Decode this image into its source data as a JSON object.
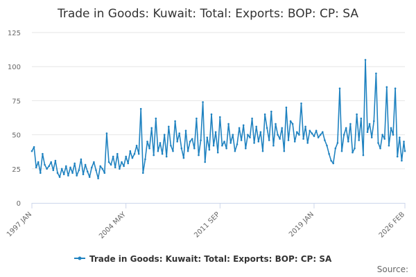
{
  "chart_data": {
    "type": "line",
    "title": "Trade in Goods: Kuwait: Total: Exports: BOP: CP: SA",
    "xlabel": "",
    "ylabel": "",
    "x_start": "1997-01",
    "x_end": "2026-02",
    "x_ticks": [
      "1997 JAN",
      "2004 MAY",
      "2011 SEP",
      "2019 JAN",
      "2026 FEB"
    ],
    "ylim": [
      0,
      125
    ],
    "y_ticks": [
      0,
      25,
      50,
      75,
      100,
      125
    ],
    "grid": true,
    "legend_position": "bottom",
    "credit": "Source:",
    "series": [
      {
        "name": "Trade in Goods: Kuwait: Total: Exports: BOP: CP: SA",
        "color": "#1f82c0",
        "x": [
          "1997-01",
          "1997-03",
          "1997-05",
          "1997-07",
          "1997-09",
          "1997-11",
          "1998-01",
          "1998-03",
          "1998-05",
          "1998-07",
          "1998-09",
          "1998-11",
          "1999-01",
          "1999-03",
          "1999-05",
          "1999-07",
          "1999-09",
          "1999-11",
          "2000-01",
          "2000-03",
          "2000-05",
          "2000-07",
          "2000-09",
          "2000-11",
          "2001-01",
          "2001-03",
          "2001-05",
          "2001-07",
          "2001-09",
          "2001-11",
          "2002-01",
          "2002-03",
          "2002-05",
          "2002-07",
          "2002-09",
          "2002-11",
          "2003-01",
          "2003-03",
          "2003-05",
          "2003-07",
          "2003-09",
          "2003-11",
          "2004-01",
          "2004-03",
          "2004-05",
          "2004-07",
          "2004-09",
          "2004-11",
          "2005-01",
          "2005-03",
          "2005-05",
          "2005-07",
          "2005-09",
          "2005-11",
          "2006-01",
          "2006-03",
          "2006-05",
          "2006-07",
          "2006-09",
          "2006-11",
          "2007-01",
          "2007-03",
          "2007-05",
          "2007-07",
          "2007-09",
          "2007-11",
          "2008-01",
          "2008-03",
          "2008-05",
          "2008-07",
          "2008-09",
          "2008-11",
          "2009-01",
          "2009-03",
          "2009-05",
          "2009-07",
          "2009-09",
          "2009-11",
          "2010-01",
          "2010-03",
          "2010-05",
          "2010-07",
          "2010-09",
          "2010-11",
          "2011-01",
          "2011-03",
          "2011-05",
          "2011-07",
          "2011-09",
          "2011-11",
          "2012-01",
          "2012-03",
          "2012-05",
          "2012-07",
          "2012-09",
          "2012-11",
          "2013-01",
          "2013-03",
          "2013-05",
          "2013-07",
          "2013-09",
          "2013-11",
          "2014-01",
          "2014-03",
          "2014-05",
          "2014-07",
          "2014-09",
          "2014-11",
          "2015-01",
          "2015-03",
          "2015-05",
          "2015-07",
          "2015-09",
          "2015-11",
          "2016-01",
          "2016-03",
          "2016-05",
          "2016-07",
          "2016-09",
          "2016-11",
          "2017-01",
          "2017-03",
          "2017-05",
          "2017-07",
          "2017-09",
          "2017-11",
          "2018-01",
          "2018-03",
          "2018-05",
          "2018-07",
          "2018-09",
          "2018-11",
          "2019-01",
          "2019-03",
          "2019-05",
          "2019-07",
          "2019-09",
          "2019-11",
          "2020-01",
          "2020-03",
          "2020-05",
          "2020-07",
          "2020-09",
          "2020-11",
          "2021-01",
          "2021-03",
          "2021-05",
          "2021-07",
          "2021-09",
          "2021-11",
          "2022-01",
          "2022-03",
          "2022-05",
          "2022-07",
          "2022-09",
          "2022-11",
          "2023-01",
          "2023-03",
          "2023-05",
          "2023-07",
          "2023-09",
          "2023-11",
          "2024-01",
          "2024-03",
          "2024-05",
          "2024-07",
          "2024-09",
          "2024-11",
          "2025-01",
          "2025-03",
          "2025-05",
          "2025-07",
          "2025-09",
          "2025-11",
          "2026-01",
          "2026-02"
        ],
        "values": [
          38,
          41,
          26,
          30,
          22,
          36,
          28,
          25,
          27,
          30,
          24,
          31,
          22,
          19,
          25,
          21,
          27,
          20,
          26,
          22,
          29,
          20,
          24,
          32,
          21,
          28,
          23,
          19,
          26,
          30,
          24,
          18,
          27,
          25,
          22,
          51,
          30,
          28,
          34,
          26,
          36,
          25,
          30,
          27,
          34,
          29,
          38,
          33,
          36,
          42,
          36,
          69,
          22,
          32,
          45,
          40,
          55,
          35,
          62,
          38,
          44,
          36,
          50,
          34,
          56,
          42,
          38,
          60,
          45,
          51,
          40,
          33,
          53,
          38,
          45,
          47,
          40,
          62,
          35,
          46,
          74,
          30,
          48,
          39,
          65,
          42,
          52,
          37,
          63,
          42,
          45,
          40,
          58,
          44,
          50,
          38,
          43,
          55,
          46,
          57,
          40,
          50,
          48,
          62,
          44,
          56,
          45,
          52,
          38,
          65,
          55,
          46,
          67,
          42,
          58,
          50,
          47,
          55,
          38,
          70,
          46,
          60,
          58,
          45,
          52,
          50,
          73,
          47,
          56,
          44,
          53,
          51,
          49,
          53,
          48,
          50,
          52,
          46,
          42,
          36,
          31,
          29,
          40,
          44,
          84,
          38,
          50,
          55,
          45,
          58,
          37,
          40,
          65,
          46,
          62,
          35,
          105,
          52,
          58,
          48,
          60,
          95,
          44,
          40,
          50,
          47,
          85,
          42,
          55,
          50,
          84,
          34,
          48,
          31,
          45,
          38
        ]
      }
    ]
  }
}
